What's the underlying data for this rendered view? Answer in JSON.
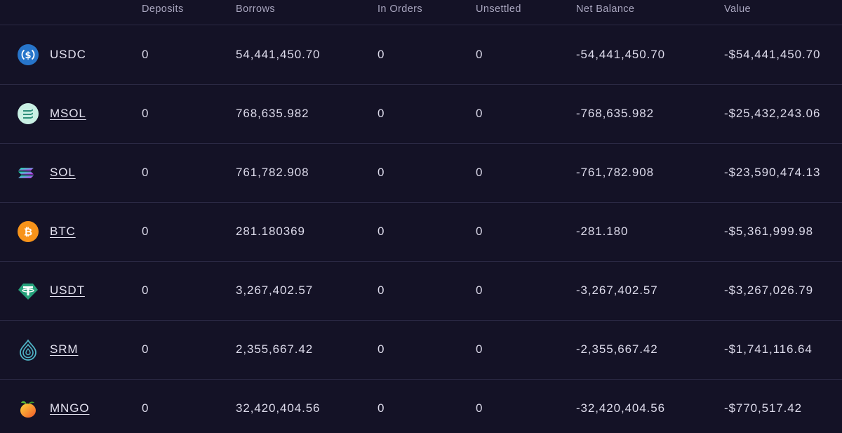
{
  "headers": {
    "deposits": "Deposits",
    "borrows": "Borrows",
    "in_orders": "In Orders",
    "unsettled": "Unsettled",
    "net_balance": "Net Balance",
    "value": "Value"
  },
  "rows": [
    {
      "symbol": "USDC",
      "icon": "usdc-icon",
      "deposits": "0",
      "borrows": "54,441,450.70",
      "in_orders": "0",
      "unsettled": "0",
      "net_balance": "-54,441,450.70",
      "value": "-$54,441,450.70"
    },
    {
      "symbol": "MSOL",
      "icon": "msol-icon",
      "deposits": "0",
      "borrows": "768,635.982",
      "in_orders": "0",
      "unsettled": "0",
      "net_balance": "-768,635.982",
      "value": "-$25,432,243.06"
    },
    {
      "symbol": "SOL",
      "icon": "sol-icon",
      "deposits": "0",
      "borrows": "761,782.908",
      "in_orders": "0",
      "unsettled": "0",
      "net_balance": "-761,782.908",
      "value": "-$23,590,474.13"
    },
    {
      "symbol": "BTC",
      "icon": "btc-icon",
      "deposits": "0",
      "borrows": "281.180369",
      "in_orders": "0",
      "unsettled": "0",
      "net_balance": "-281.180",
      "value": "-$5,361,999.98"
    },
    {
      "symbol": "USDT",
      "icon": "usdt-icon",
      "deposits": "0",
      "borrows": "3,267,402.57",
      "in_orders": "0",
      "unsettled": "0",
      "net_balance": "-3,267,402.57",
      "value": "-$3,267,026.79"
    },
    {
      "symbol": "SRM",
      "icon": "srm-icon",
      "deposits": "0",
      "borrows": "2,355,667.42",
      "in_orders": "0",
      "unsettled": "0",
      "net_balance": "-2,355,667.42",
      "value": "-$1,741,116.64"
    },
    {
      "symbol": "MNGO",
      "icon": "mngo-icon",
      "deposits": "0",
      "borrows": "32,420,404.56",
      "in_orders": "0",
      "unsettled": "0",
      "net_balance": "-32,420,404.56",
      "value": "-$770,517.42"
    }
  ],
  "colors": {
    "background": "#141226",
    "divider": "#2b2944",
    "header_text": "#a9a6bf",
    "cell_text": "#dcdaea",
    "usdc": "#2775ca",
    "btc": "#f7931a",
    "usdt": "#26a17b",
    "srm": "#4fb5c7",
    "mngo": "#f5a623"
  }
}
